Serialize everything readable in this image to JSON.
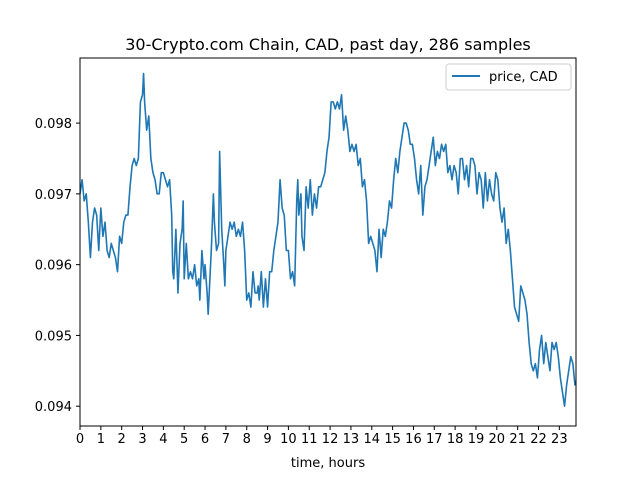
{
  "chart_data": {
    "type": "line",
    "title": "30-Crypto.com Chain, CAD, past day, 286 samples",
    "xlabel": "time, hours",
    "ylabel": "",
    "xlim": [
      0,
      23.8
    ],
    "ylim": [
      0.09372,
      0.09892
    ],
    "x_ticks": [
      0,
      1,
      2,
      3,
      4,
      5,
      6,
      7,
      8,
      9,
      10,
      11,
      12,
      13,
      14,
      15,
      16,
      17,
      18,
      19,
      20,
      21,
      22,
      23
    ],
    "x_tick_labels": [
      "0",
      "1",
      "2",
      "3",
      "4",
      "5",
      "6",
      "7",
      "8",
      "9",
      "10",
      "11",
      "12",
      "13",
      "14",
      "15",
      "16",
      "17",
      "18",
      "19",
      "20",
      "21",
      "22",
      "23"
    ],
    "y_ticks": [
      0.094,
      0.095,
      0.096,
      0.097,
      0.098
    ],
    "y_tick_labels": [
      "0.094",
      "0.095",
      "0.096",
      "0.097",
      "0.098"
    ],
    "grid": false,
    "legend_position": "top-right",
    "series": [
      {
        "name": "price, CAD",
        "color": "#1f77b4",
        "points": [
          [
            0.0,
            0.097
          ],
          [
            0.1,
            0.0972
          ],
          [
            0.2,
            0.0969
          ],
          [
            0.3,
            0.097
          ],
          [
            0.4,
            0.0966
          ],
          [
            0.5,
            0.0961
          ],
          [
            0.6,
            0.0966
          ],
          [
            0.7,
            0.0968
          ],
          [
            0.8,
            0.0967
          ],
          [
            0.9,
            0.0962
          ],
          [
            1.0,
            0.0968
          ],
          [
            1.1,
            0.0964
          ],
          [
            1.2,
            0.0966
          ],
          [
            1.3,
            0.0962
          ],
          [
            1.4,
            0.0961
          ],
          [
            1.5,
            0.0963
          ],
          [
            1.6,
            0.0962
          ],
          [
            1.7,
            0.0961
          ],
          [
            1.8,
            0.0959
          ],
          [
            1.9,
            0.0964
          ],
          [
            2.0,
            0.0963
          ],
          [
            2.1,
            0.0966
          ],
          [
            2.2,
            0.0967
          ],
          [
            2.3,
            0.0967
          ],
          [
            2.4,
            0.0971
          ],
          [
            2.5,
            0.0974
          ],
          [
            2.6,
            0.0975
          ],
          [
            2.7,
            0.0974
          ],
          [
            2.8,
            0.0975
          ],
          [
            2.9,
            0.0983
          ],
          [
            3.0,
            0.0984
          ],
          [
            3.05,
            0.0987
          ],
          [
            3.1,
            0.0983
          ],
          [
            3.2,
            0.0979
          ],
          [
            3.3,
            0.0981
          ],
          [
            3.4,
            0.0975
          ],
          [
            3.5,
            0.0973
          ],
          [
            3.6,
            0.0972
          ],
          [
            3.7,
            0.097
          ],
          [
            3.8,
            0.097
          ],
          [
            3.9,
            0.0973
          ],
          [
            4.0,
            0.0973
          ],
          [
            4.1,
            0.0972
          ],
          [
            4.2,
            0.0971
          ],
          [
            4.3,
            0.0972
          ],
          [
            4.4,
            0.0967
          ],
          [
            4.45,
            0.0959
          ],
          [
            4.5,
            0.0958
          ],
          [
            4.6,
            0.0965
          ],
          [
            4.7,
            0.0956
          ],
          [
            4.8,
            0.0963
          ],
          [
            4.9,
            0.0965
          ],
          [
            4.95,
            0.0969
          ],
          [
            5.0,
            0.0958
          ],
          [
            5.1,
            0.0963
          ],
          [
            5.2,
            0.0958
          ],
          [
            5.3,
            0.0959
          ],
          [
            5.4,
            0.0958
          ],
          [
            5.5,
            0.096
          ],
          [
            5.6,
            0.0957
          ],
          [
            5.7,
            0.0958
          ],
          [
            5.75,
            0.0955
          ],
          [
            5.85,
            0.0962
          ],
          [
            5.95,
            0.0958
          ],
          [
            6.0,
            0.096
          ],
          [
            6.1,
            0.0956
          ],
          [
            6.15,
            0.0953
          ],
          [
            6.2,
            0.0956
          ],
          [
            6.3,
            0.0962
          ],
          [
            6.4,
            0.097
          ],
          [
            6.45,
            0.0966
          ],
          [
            6.55,
            0.0962
          ],
          [
            6.65,
            0.0963
          ],
          [
            6.7,
            0.0976
          ],
          [
            6.8,
            0.0965
          ],
          [
            6.9,
            0.096
          ],
          [
            6.95,
            0.0957
          ],
          [
            7.0,
            0.0962
          ],
          [
            7.1,
            0.0964
          ],
          [
            7.2,
            0.0966
          ],
          [
            7.3,
            0.0965
          ],
          [
            7.4,
            0.0966
          ],
          [
            7.5,
            0.0964
          ],
          [
            7.6,
            0.0965
          ],
          [
            7.7,
            0.0964
          ],
          [
            7.8,
            0.0966
          ],
          [
            7.9,
            0.0962
          ],
          [
            8.0,
            0.0955
          ],
          [
            8.1,
            0.0956
          ],
          [
            8.2,
            0.0954
          ],
          [
            8.3,
            0.0959
          ],
          [
            8.4,
            0.0956
          ],
          [
            8.5,
            0.0956
          ],
          [
            8.55,
            0.0957
          ],
          [
            8.6,
            0.0955
          ],
          [
            8.7,
            0.0959
          ],
          [
            8.8,
            0.0954
          ],
          [
            8.9,
            0.0958
          ],
          [
            9.0,
            0.0954
          ],
          [
            9.1,
            0.0959
          ],
          [
            9.2,
            0.0959
          ],
          [
            9.3,
            0.0962
          ],
          [
            9.4,
            0.0964
          ],
          [
            9.5,
            0.0966
          ],
          [
            9.6,
            0.0972
          ],
          [
            9.7,
            0.0968
          ],
          [
            9.8,
            0.0967
          ],
          [
            9.9,
            0.0962
          ],
          [
            10.0,
            0.0962
          ],
          [
            10.05,
            0.096
          ],
          [
            10.1,
            0.0958
          ],
          [
            10.2,
            0.0959
          ],
          [
            10.3,
            0.0957
          ],
          [
            10.4,
            0.0969
          ],
          [
            10.45,
            0.0972
          ],
          [
            10.5,
            0.0967
          ],
          [
            10.6,
            0.097
          ],
          [
            10.65,
            0.0964
          ],
          [
            10.75,
            0.0962
          ],
          [
            10.85,
            0.0971
          ],
          [
            10.95,
            0.0968
          ],
          [
            11.05,
            0.0972
          ],
          [
            11.15,
            0.0967
          ],
          [
            11.25,
            0.097
          ],
          [
            11.35,
            0.0968
          ],
          [
            11.45,
            0.0971
          ],
          [
            11.55,
            0.0971
          ],
          [
            11.65,
            0.0972
          ],
          [
            11.75,
            0.0973
          ],
          [
            11.85,
            0.0976
          ],
          [
            11.95,
            0.0978
          ],
          [
            12.05,
            0.0983
          ],
          [
            12.15,
            0.0983
          ],
          [
            12.25,
            0.0982
          ],
          [
            12.35,
            0.0983
          ],
          [
            12.45,
            0.0982
          ],
          [
            12.55,
            0.0984
          ],
          [
            12.65,
            0.0979
          ],
          [
            12.75,
            0.0981
          ],
          [
            12.85,
            0.0979
          ],
          [
            12.95,
            0.0976
          ],
          [
            13.05,
            0.0977
          ],
          [
            13.15,
            0.0976
          ],
          [
            13.25,
            0.0977
          ],
          [
            13.35,
            0.0974
          ],
          [
            13.45,
            0.0975
          ],
          [
            13.55,
            0.0971
          ],
          [
            13.65,
            0.0972
          ],
          [
            13.75,
            0.0969
          ],
          [
            13.85,
            0.0963
          ],
          [
            13.95,
            0.0964
          ],
          [
            14.05,
            0.0963
          ],
          [
            14.15,
            0.0962
          ],
          [
            14.25,
            0.0959
          ],
          [
            14.35,
            0.0965
          ],
          [
            14.45,
            0.0961
          ],
          [
            14.55,
            0.0965
          ],
          [
            14.65,
            0.0964
          ],
          [
            14.75,
            0.0966
          ],
          [
            14.85,
            0.0969
          ],
          [
            14.95,
            0.0968
          ],
          [
            15.05,
            0.0972
          ],
          [
            15.15,
            0.0975
          ],
          [
            15.25,
            0.0973
          ],
          [
            15.35,
            0.0976
          ],
          [
            15.45,
            0.0978
          ],
          [
            15.55,
            0.098
          ],
          [
            15.65,
            0.098
          ],
          [
            15.75,
            0.0979
          ],
          [
            15.85,
            0.0977
          ],
          [
            15.95,
            0.0977
          ],
          [
            16.05,
            0.0975
          ],
          [
            16.15,
            0.0972
          ],
          [
            16.25,
            0.097
          ],
          [
            16.35,
            0.0974
          ],
          [
            16.45,
            0.0967
          ],
          [
            16.55,
            0.0971
          ],
          [
            16.65,
            0.0972
          ],
          [
            16.75,
            0.0974
          ],
          [
            16.85,
            0.0976
          ],
          [
            16.95,
            0.0978
          ],
          [
            17.05,
            0.0974
          ],
          [
            17.15,
            0.0976
          ],
          [
            17.25,
            0.0975
          ],
          [
            17.35,
            0.0977
          ],
          [
            17.45,
            0.0976
          ],
          [
            17.55,
            0.0977
          ],
          [
            17.65,
            0.0973
          ],
          [
            17.75,
            0.0974
          ],
          [
            17.85,
            0.0972
          ],
          [
            17.95,
            0.0974
          ],
          [
            18.05,
            0.0973
          ],
          [
            18.15,
            0.097
          ],
          [
            18.25,
            0.0975
          ],
          [
            18.35,
            0.0975
          ],
          [
            18.45,
            0.0972
          ],
          [
            18.55,
            0.0974
          ],
          [
            18.65,
            0.0971
          ],
          [
            18.75,
            0.0975
          ],
          [
            18.85,
            0.0975
          ],
          [
            18.95,
            0.0974
          ],
          [
            19.05,
            0.097
          ],
          [
            19.15,
            0.0973
          ],
          [
            19.25,
            0.0972
          ],
          [
            19.35,
            0.0968
          ],
          [
            19.45,
            0.0973
          ],
          [
            19.55,
            0.0969
          ],
          [
            19.65,
            0.0972
          ],
          [
            19.75,
            0.097
          ],
          [
            19.85,
            0.0969
          ],
          [
            19.95,
            0.0973
          ],
          [
            20.05,
            0.0972
          ],
          [
            20.15,
            0.0968
          ],
          [
            20.25,
            0.0966
          ],
          [
            20.35,
            0.0968
          ],
          [
            20.45,
            0.0963
          ],
          [
            20.55,
            0.0965
          ],
          [
            20.65,
            0.0962
          ],
          [
            20.75,
            0.0958
          ],
          [
            20.85,
            0.0954
          ],
          [
            20.95,
            0.0953
          ],
          [
            21.05,
            0.0952
          ],
          [
            21.15,
            0.0957
          ],
          [
            21.25,
            0.0956
          ],
          [
            21.35,
            0.0955
          ],
          [
            21.45,
            0.0953
          ],
          [
            21.55,
            0.0949
          ],
          [
            21.65,
            0.0946
          ],
          [
            21.75,
            0.0945
          ],
          [
            21.85,
            0.0946
          ],
          [
            21.95,
            0.0944
          ],
          [
            22.05,
            0.0948
          ],
          [
            22.15,
            0.095
          ],
          [
            22.25,
            0.0946
          ],
          [
            22.35,
            0.0949
          ],
          [
            22.45,
            0.0947
          ],
          [
            22.55,
            0.0945
          ],
          [
            22.65,
            0.0949
          ],
          [
            22.75,
            0.0948
          ],
          [
            22.85,
            0.0949
          ],
          [
            22.95,
            0.0947
          ],
          [
            23.05,
            0.0944
          ],
          [
            23.15,
            0.0942
          ],
          [
            23.25,
            0.094
          ],
          [
            23.35,
            0.0943
          ],
          [
            23.45,
            0.0945
          ],
          [
            23.55,
            0.0947
          ],
          [
            23.65,
            0.0946
          ],
          [
            23.75,
            0.0943
          ],
          [
            23.85,
            0.0944
          ],
          [
            23.95,
            0.0943
          ],
          [
            24.05,
            0.0946
          ],
          [
            24.15,
            0.0944
          ],
          [
            24.25,
            0.0945
          ]
        ]
      }
    ]
  }
}
